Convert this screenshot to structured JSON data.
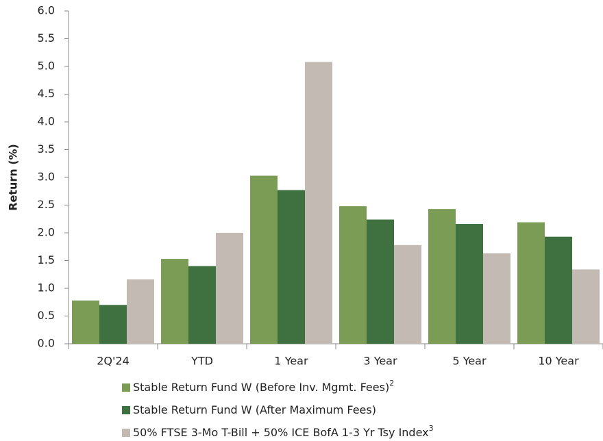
{
  "chart_data": {
    "type": "bar",
    "ylabel": "Return (%)",
    "categories": [
      "2Q'24",
      "YTD",
      "1 Year",
      "3 Year",
      "5 Year",
      "10 Year"
    ],
    "series": [
      {
        "name": "Stable Return Fund W (Before Inv. Mgmt. Fees)",
        "footnote": "2",
        "color": "#7a9c55",
        "values": [
          0.78,
          1.53,
          3.03,
          2.48,
          2.43,
          2.19
        ]
      },
      {
        "name": "Stable Return Fund W (After Maximum Fees)",
        "color": "#3e7040",
        "values": [
          0.7,
          1.4,
          2.77,
          2.24,
          2.16,
          1.93
        ]
      },
      {
        "name": "50% FTSE 3-Mo T-Bill + 50% ICE BofA 1-3 Yr Tsy Index",
        "footnote": "3",
        "color": "#c3bab3",
        "values": [
          1.16,
          2.0,
          5.08,
          1.78,
          1.63,
          1.34
        ]
      }
    ],
    "ylim": [
      0,
      6
    ],
    "yticks": [
      {
        "value": 0,
        "label": "0.0"
      },
      0.5,
      {
        "value": 1,
        "label": "1.0"
      },
      1.5,
      {
        "value": 2,
        "label": "2.0"
      },
      2.5,
      {
        "value": 3,
        "label": "3.0"
      },
      3.5,
      {
        "value": 4,
        "label": "4.0"
      },
      4.5,
      {
        "value": 5,
        "label": "5.0"
      },
      5.5,
      {
        "value": 6,
        "label": "6.0"
      }
    ],
    "grid": false,
    "legend": "bottom"
  }
}
